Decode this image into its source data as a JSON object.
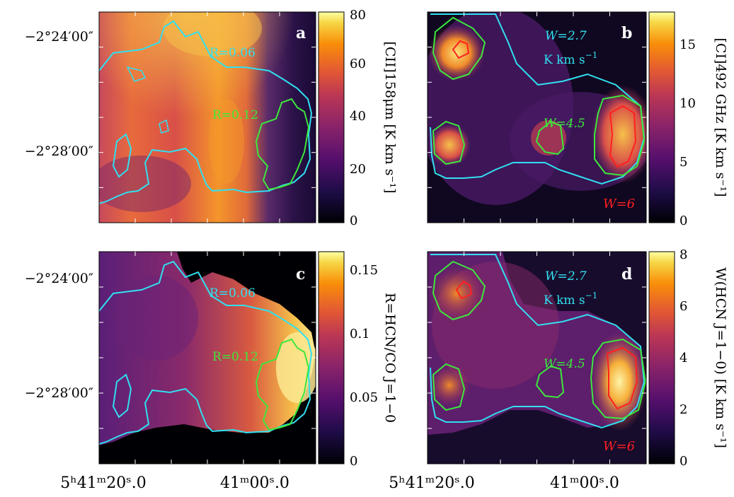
{
  "chart_data": [
    {
      "type": "heatmap",
      "panel_label": "a",
      "colorbar": {
        "label": "[CII]158μm [K km s⁻¹]",
        "ticks": [
          "0",
          "20",
          "40",
          "60",
          "80"
        ],
        "range": [
          0,
          80
        ]
      },
      "contour_labels": [
        {
          "text": "R=0.06",
          "color": "#30e0f0"
        },
        {
          "text": "R=0.12",
          "color": "#3ce83c"
        }
      ],
      "y_tick_labels": [
        "−2°24′00″",
        "−2°28′00″"
      ],
      "x_tick_labels": []
    },
    {
      "type": "heatmap",
      "panel_label": "b",
      "colorbar": {
        "label": "[CI]492 GHz [K km s⁻¹]",
        "ticks": [
          "0",
          "5",
          "10",
          "15"
        ],
        "range": [
          0,
          18
        ]
      },
      "contour_labels": [
        {
          "text": "W=2.7",
          "color": "#30e0f0"
        },
        {
          "text": "K km s⁻¹",
          "color": "#30e0f0"
        },
        {
          "text": "W=4.5",
          "color": "#3ce83c"
        },
        {
          "text": "W=6",
          "color": "#ff2020"
        }
      ],
      "y_tick_labels": [],
      "x_tick_labels": []
    },
    {
      "type": "heatmap",
      "panel_label": "c",
      "colorbar": {
        "label": "R=HCN/CO J=1−0",
        "ticks": [
          "0",
          "0.05",
          "0.1",
          "0.15"
        ],
        "range": [
          0,
          0.16
        ]
      },
      "contour_labels": [
        {
          "text": "R=0.06",
          "color": "#30e0f0"
        },
        {
          "text": "R=0.12",
          "color": "#3ce83c"
        }
      ],
      "y_tick_labels": [
        "−2°24′00″",
        "−2°28′00″"
      ],
      "x_tick_labels": [
        "5ʰ41ᵐ20ˢ.0",
        "41ᵐ00ˢ.0"
      ]
    },
    {
      "type": "heatmap",
      "panel_label": "d",
      "colorbar": {
        "label": "W(HCN J=1−0) [K km s⁻¹]",
        "ticks": [
          "0",
          "2",
          "4",
          "6",
          "8"
        ],
        "range": [
          0,
          8
        ]
      },
      "contour_labels": [
        {
          "text": "W=2.7",
          "color": "#30e0f0"
        },
        {
          "text": "K km s⁻¹",
          "color": "#30e0f0"
        },
        {
          "text": "W=4.5",
          "color": "#3ce83c"
        },
        {
          "text": "W=6",
          "color": "#ff2020"
        }
      ],
      "y_tick_labels": [],
      "x_tick_labels": [
        "5ʰ41ᵐ20ˢ.0",
        "41ᵐ00ˢ.0"
      ]
    }
  ],
  "text": {
    "a_label": "a",
    "b_label": "b",
    "c_label": "c",
    "d_label": "d",
    "a_c1": "R=0.06",
    "a_c2": "R=0.12",
    "c_c1": "R=0.06",
    "c_c2": "R=0.12",
    "b_w1": "W=2.7",
    "b_u1": "K km s",
    "b_w2": "W=4.5",
    "b_w3": "W=6",
    "d_w1": "W=2.7",
    "d_u1": "K km s",
    "d_w2": "W=4.5",
    "d_w3": "W=6",
    "sup_m1": "−1",
    "dec1": "−2°24′00″",
    "dec2": "−2°28′00″",
    "dec3": "−2°24′00″",
    "dec4": "−2°28′00″",
    "ra1": "5ʰ41ᵐ20ˢ.0",
    "ra2": "41ᵐ00ˢ.0",
    "ra3": "5ʰ41ᵐ20ˢ.0",
    "ra4": "41ᵐ00ˢ.0",
    "cb_a": "[CII]158μm [K km s⁻¹]",
    "cb_b": "[CI]492 GHz [K km s⁻¹]",
    "cb_c": "R=HCN/CO J=1−0",
    "cb_d": "W(HCN J=1−0) [K km s⁻¹]",
    "cba_t0": "0",
    "cba_t1": "20",
    "cba_t2": "40",
    "cba_t3": "60",
    "cba_t4": "80",
    "cbb_t0": "0",
    "cbb_t1": "5",
    "cbb_t2": "10",
    "cbb_t3": "15",
    "cbc_t0": "0",
    "cbc_t1": "0.05",
    "cbc_t2": "0.1",
    "cbc_t3": "0.15",
    "cbd_t0": "0",
    "cbd_t1": "2",
    "cbd_t2": "4",
    "cbd_t3": "6",
    "cbd_t4": "8"
  }
}
